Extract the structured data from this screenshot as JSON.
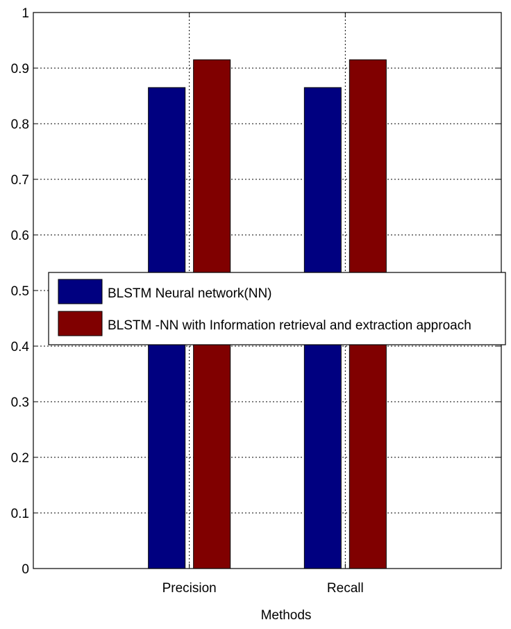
{
  "chart_data": {
    "type": "bar",
    "title": "",
    "xlabel": "Methods",
    "ylabel": "",
    "categories": [
      "Precision",
      "Recall"
    ],
    "series": [
      {
        "name": "BLSTM Neural network(NN)",
        "values": [
          0.865,
          0.865
        ],
        "color": "#000080"
      },
      {
        "name": "BLSTM -NN with Information retrieval and extraction approach",
        "values": [
          0.915,
          0.915
        ],
        "color": "#800000"
      }
    ],
    "ylim": [
      0,
      1
    ],
    "yticks": [
      "0",
      "0.1",
      "0.2",
      "0.3",
      "0.4",
      "0.5",
      "0.6",
      "0.7",
      "0.8",
      "0.9",
      "1"
    ],
    "grid": true,
    "legend_position": "center-left"
  }
}
